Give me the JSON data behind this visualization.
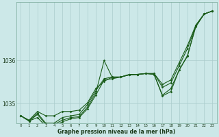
{
  "xlabel": "Graphe pression niveau de la mer (hPa)",
  "background_color": "#cce8e8",
  "grid_color": "#aacccc",
  "line_color": "#1a5c1a",
  "x_ticks": [
    0,
    1,
    2,
    3,
    4,
    5,
    6,
    7,
    8,
    9,
    10,
    11,
    12,
    13,
    14,
    15,
    16,
    17,
    18,
    19,
    20,
    21,
    22,
    23
  ],
  "ylim": [
    1034.55,
    1037.35
  ],
  "yticks": [
    1035,
    1036
  ],
  "series1": [
    1034.72,
    1034.62,
    1034.82,
    1034.72,
    1034.72,
    1034.82,
    1034.82,
    1034.85,
    1035.02,
    1035.35,
    1035.52,
    1035.62,
    1035.62,
    1035.67,
    1035.68,
    1035.7,
    1035.7,
    1035.45,
    1035.55,
    1035.95,
    1036.35,
    1036.82,
    1037.08,
    1037.15
  ],
  "series2": [
    1034.72,
    1034.6,
    1034.75,
    1034.52,
    1034.52,
    1034.62,
    1034.68,
    1034.7,
    1034.92,
    1035.25,
    1036.0,
    1035.6,
    1035.62,
    1035.67,
    1035.68,
    1035.7,
    1035.68,
    1035.2,
    1035.35,
    1035.78,
    1036.1,
    1036.82,
    1037.08,
    1037.15
  ],
  "series3": [
    1034.72,
    1034.6,
    1034.68,
    1034.48,
    1034.48,
    1034.58,
    1034.65,
    1034.68,
    1034.88,
    1035.2,
    1035.55,
    1035.58,
    1035.62,
    1035.67,
    1035.68,
    1035.7,
    1035.68,
    1035.18,
    1035.28,
    1035.78,
    1036.12,
    1036.78,
    1037.08,
    1037.15
  ],
  "series4": [
    1034.72,
    1034.6,
    1034.78,
    1034.55,
    1034.55,
    1034.68,
    1034.72,
    1034.75,
    1034.98,
    1035.3,
    1035.58,
    1035.62,
    1035.62,
    1035.68,
    1035.68,
    1035.7,
    1035.7,
    1035.38,
    1035.48,
    1035.88,
    1036.28,
    1036.8,
    1037.08,
    1037.15
  ]
}
